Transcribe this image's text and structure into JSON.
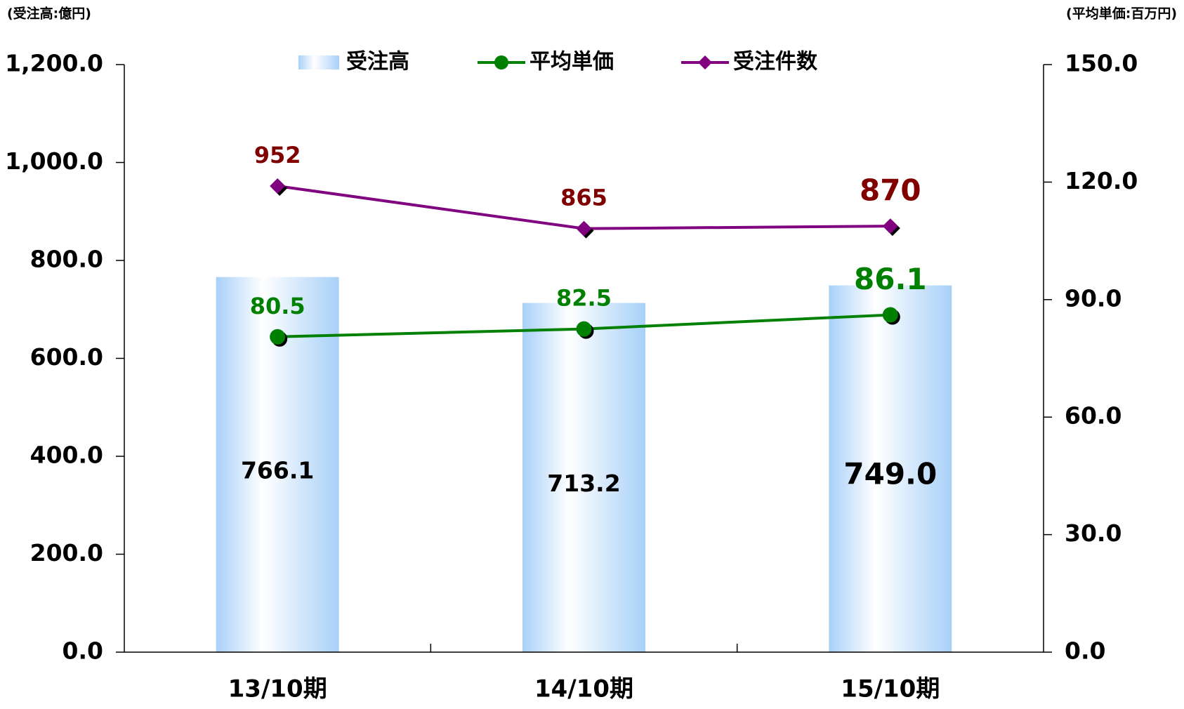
{
  "chart_data": {
    "type": "bar_line",
    "y_label": "(受注高:億円)",
    "y2_label": "(平均単価:百万円)",
    "categories": [
      "13/10期",
      "14/10期",
      "15/10期"
    ],
    "series": [
      {
        "name": "受注高",
        "type": "bar",
        "color": "#a8d0f8",
        "values": [
          766.1,
          713.2,
          749.0
        ],
        "value_labels": [
          "766.1",
          "713.2",
          "749.0"
        ],
        "label_color": "#000000"
      },
      {
        "name": "平均単価",
        "type": "line",
        "axis": "y2",
        "color": "#008000",
        "marker": "circle",
        "values": [
          80.5,
          82.5,
          86.1
        ],
        "value_labels": [
          "80.5",
          "82.5",
          "86.1"
        ],
        "label_color": "#008000"
      },
      {
        "name": "受注件数",
        "type": "line",
        "color": "#800080",
        "marker": "diamond",
        "values": [
          952,
          865,
          870
        ],
        "label_color": "#800000"
      }
    ],
    "ylim": [
      0,
      1200
    ],
    "yticks": [
      {
        "value": 0,
        "label": "0.0"
      },
      {
        "value": 200,
        "label": "200.0"
      },
      {
        "value": 400,
        "label": "400.0"
      },
      {
        "value": 600,
        "label": "600.0"
      },
      {
        "value": 800,
        "label": "800.0"
      },
      {
        "value": 1000,
        "label": "1,000.0"
      },
      {
        "value": 1200,
        "label": "1,200.0"
      }
    ],
    "y2lim": [
      0,
      150
    ],
    "y2ticks": [
      {
        "value": 0,
        "label": "0.0"
      },
      {
        "value": 30,
        "label": "30.0"
      },
      {
        "value": 60,
        "label": "60.0"
      },
      {
        "value": 90,
        "label": "90.0"
      },
      {
        "value": 120,
        "label": "120.0"
      },
      {
        "value": 150,
        "label": "150.0"
      }
    ],
    "legend": "top"
  }
}
